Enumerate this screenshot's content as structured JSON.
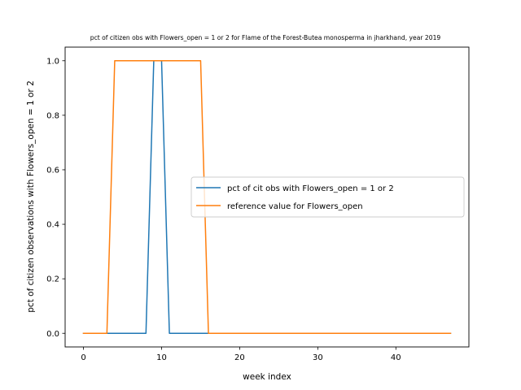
{
  "chart_data": {
    "type": "line",
    "title": "pct of citizen obs with Flowers_open = 1 or 2 for Flame of the Forest-Butea monosperma in jharkhand, year 2019",
    "xlabel": "week index",
    "ylabel": "pct of citizen observations with Flowers_open = 1 or 2",
    "xlim": [
      -2.35,
      49.35
    ],
    "ylim": [
      -0.05,
      1.05
    ],
    "xticks": [
      0,
      10,
      20,
      30,
      40
    ],
    "yticks": [
      0.0,
      0.2,
      0.4,
      0.6,
      0.8,
      1.0
    ],
    "xtick_labels": [
      "0",
      "10",
      "20",
      "30",
      "40"
    ],
    "ytick_labels": [
      "0.0",
      "0.2",
      "0.4",
      "0.6",
      "0.8",
      "1.0"
    ],
    "grid": false,
    "legend_position": "center-right",
    "x": [
      0,
      1,
      2,
      3,
      4,
      5,
      6,
      7,
      8,
      9,
      10,
      11,
      12,
      13,
      14,
      15,
      16,
      17,
      18,
      19,
      20,
      21,
      22,
      23,
      24,
      25,
      26,
      27,
      28,
      29,
      30,
      31,
      32,
      33,
      34,
      35,
      36,
      37,
      38,
      39,
      40,
      41,
      42,
      43,
      44,
      45,
      46,
      47
    ],
    "series": [
      {
        "name": "pct of cit obs with Flowers_open = 1 or 2",
        "color": "#1f77b4",
        "values": [
          0,
          0,
          0,
          0,
          0,
          0,
          0,
          0,
          0,
          1,
          1,
          0,
          0,
          0,
          0,
          0,
          0,
          0,
          0,
          0,
          0,
          0,
          0,
          0,
          0,
          0,
          0,
          0,
          0,
          0,
          0,
          0,
          0,
          0,
          0,
          0,
          0,
          0,
          0,
          0,
          0,
          0,
          0,
          0,
          0,
          0,
          0,
          0
        ]
      },
      {
        "name": "reference value for Flowers_open",
        "color": "#ff7f0e",
        "values": [
          0,
          0,
          0,
          0,
          1,
          1,
          1,
          1,
          1,
          1,
          1,
          1,
          1,
          1,
          1,
          1,
          0,
          0,
          0,
          0,
          0,
          0,
          0,
          0,
          0,
          0,
          0,
          0,
          0,
          0,
          0,
          0,
          0,
          0,
          0,
          0,
          0,
          0,
          0,
          0,
          0,
          0,
          0,
          0,
          0,
          0,
          0,
          0
        ]
      }
    ]
  }
}
